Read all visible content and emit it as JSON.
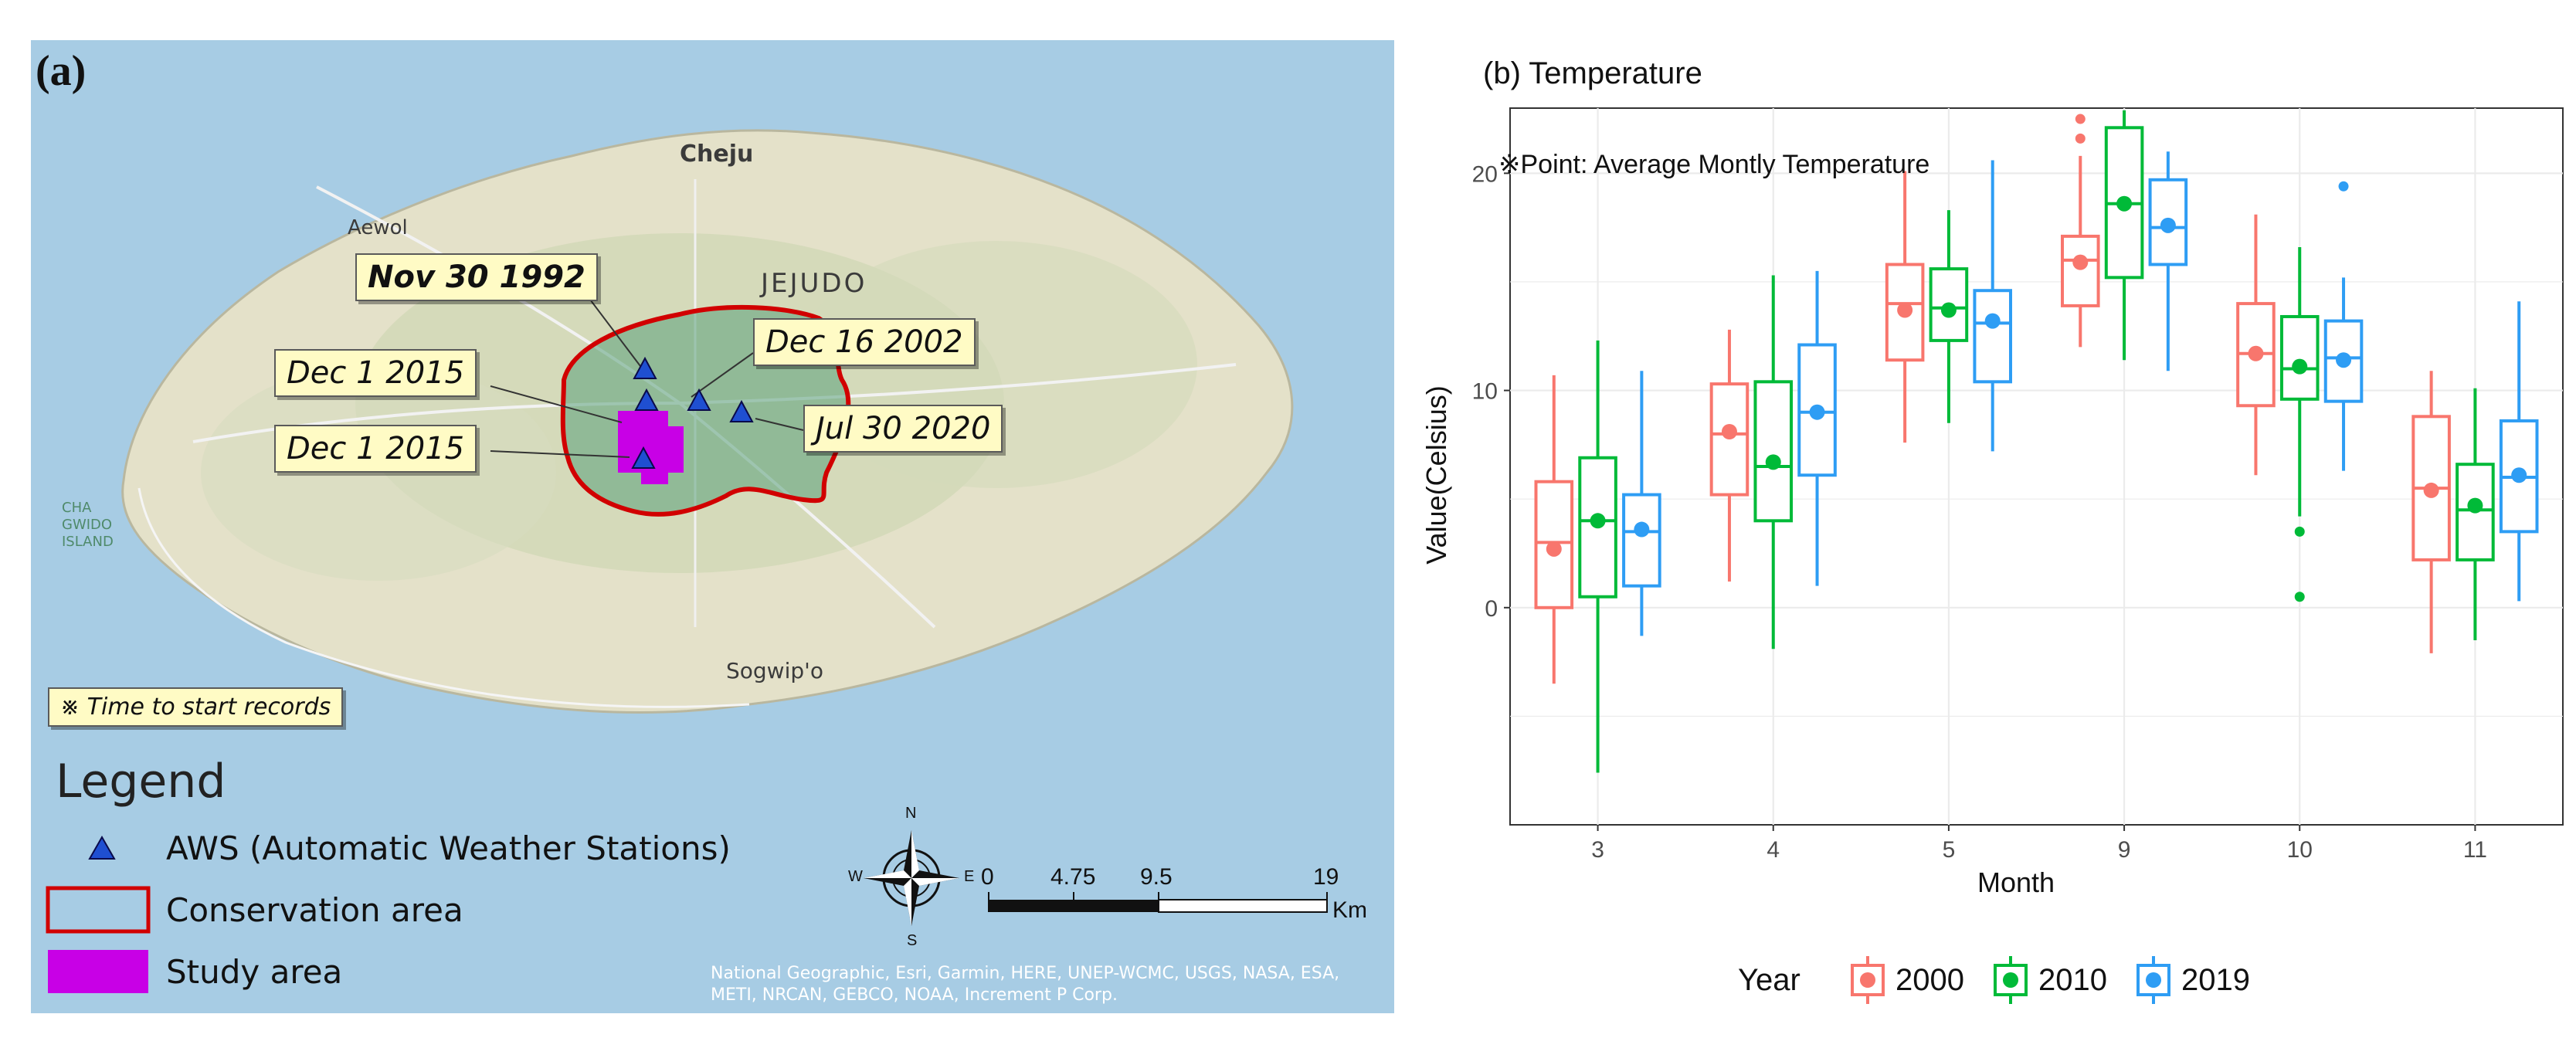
{
  "map": {
    "panel_label": "(a)",
    "callouts": [
      {
        "text": "Nov 30 1992",
        "bold": true
      },
      {
        "text": "Dec 16 2002",
        "bold": false
      },
      {
        "text": "Dec 1 2015",
        "bold": false
      },
      {
        "text": "Jul 30 2020",
        "bold": false
      },
      {
        "text": "Dec 1 2015",
        "bold": false
      }
    ],
    "place_names": {
      "cheju": "Cheju",
      "jejudo": "JEJUDO",
      "sogwipo": "Sogwip'o",
      "aewol": "Aewol",
      "island": "CHA\nGWIDO\nISLAND"
    },
    "note": "※ Time to start records",
    "legend": {
      "title": "Legend",
      "items": [
        {
          "label": "AWS (Automatic Weather Stations)",
          "symbol": "triangle",
          "color": "#1f4fd1"
        },
        {
          "label": "Conservation area",
          "symbol": "outline",
          "color": "#d10000"
        },
        {
          "label": "Study area",
          "symbol": "fill",
          "color": "#c800e6"
        }
      ]
    },
    "scale_bar": {
      "ticks": [
        "0",
        "4.75",
        "9.5",
        "19"
      ],
      "unit": "Km"
    },
    "compass": {
      "n": "N",
      "s": "S",
      "e": "E",
      "w": "W"
    },
    "attribution": "National Geographic, Esri, Garmin, HERE, UNEP-WCMC, USGS, NASA, ESA, METI, NRCAN, GEBCO, NOAA, Increment P Corp."
  },
  "chart_data": {
    "type": "boxplot",
    "title": "(b) Temperature",
    "annotation": "※Point: Average Montly Temperature",
    "xlabel": "Month",
    "ylabel": "Value(Celsius)",
    "ylim": [
      -10,
      23
    ],
    "yticks": [
      0,
      10,
      20
    ],
    "categories": [
      "3",
      "4",
      "5",
      "9",
      "10",
      "11"
    ],
    "legend_title": "Year",
    "series": [
      {
        "name": "2000",
        "color": "#f8766d",
        "boxes": [
          {
            "min": -3.5,
            "q1": 0.0,
            "median": 3.0,
            "q3": 5.8,
            "max": 10.7,
            "mean": 2.7,
            "outliers": []
          },
          {
            "min": 1.2,
            "q1": 5.2,
            "median": 8.0,
            "q3": 10.3,
            "max": 12.8,
            "mean": 8.1,
            "outliers": []
          },
          {
            "min": 7.6,
            "q1": 11.4,
            "median": 14.0,
            "q3": 15.8,
            "max": 20.1,
            "mean": 13.7,
            "outliers": []
          },
          {
            "min": 12.0,
            "q1": 13.9,
            "median": 16.0,
            "q3": 17.1,
            "max": 20.8,
            "mean": 15.9,
            "outliers": [
              21.6,
              22.5
            ]
          },
          {
            "min": 6.1,
            "q1": 9.3,
            "median": 11.7,
            "q3": 14.0,
            "max": 18.1,
            "mean": 11.7,
            "outliers": []
          },
          {
            "min": -2.1,
            "q1": 2.2,
            "median": 5.5,
            "q3": 8.8,
            "max": 10.9,
            "mean": 5.4,
            "outliers": []
          }
        ]
      },
      {
        "name": "2010",
        "color": "#00ba38",
        "boxes": [
          {
            "min": -7.6,
            "q1": 0.5,
            "median": 4.0,
            "q3": 6.9,
            "max": 12.3,
            "mean": 4.0,
            "outliers": []
          },
          {
            "min": -1.9,
            "q1": 4.0,
            "median": 6.5,
            "q3": 10.4,
            "max": 15.3,
            "mean": 6.7,
            "outliers": []
          },
          {
            "min": 8.5,
            "q1": 12.3,
            "median": 13.8,
            "q3": 15.6,
            "max": 18.3,
            "mean": 13.7,
            "outliers": []
          },
          {
            "min": 11.4,
            "q1": 15.2,
            "median": 18.6,
            "q3": 22.1,
            "max": 22.9,
            "mean": 18.6,
            "outliers": []
          },
          {
            "min": 4.2,
            "q1": 9.6,
            "median": 11.0,
            "q3": 13.4,
            "max": 16.6,
            "mean": 11.1,
            "outliers": [
              3.5,
              0.5
            ]
          },
          {
            "min": -1.5,
            "q1": 2.2,
            "median": 4.5,
            "q3": 6.6,
            "max": 10.1,
            "mean": 4.7,
            "outliers": []
          }
        ]
      },
      {
        "name": "2019",
        "color": "#2e9df4",
        "boxes": [
          {
            "min": -1.3,
            "q1": 1.0,
            "median": 3.5,
            "q3": 5.2,
            "max": 10.9,
            "mean": 3.6,
            "outliers": []
          },
          {
            "min": 1.0,
            "q1": 6.1,
            "median": 9.0,
            "q3": 12.1,
            "max": 15.5,
            "mean": 9.0,
            "outliers": []
          },
          {
            "min": 7.2,
            "q1": 10.4,
            "median": 13.1,
            "q3": 14.6,
            "max": 20.6,
            "mean": 13.2,
            "outliers": []
          },
          {
            "min": 10.9,
            "q1": 15.8,
            "median": 17.5,
            "q3": 19.7,
            "max": 21.0,
            "mean": 17.6,
            "outliers": []
          },
          {
            "min": 6.3,
            "q1": 9.5,
            "median": 11.5,
            "q3": 13.2,
            "max": 15.2,
            "mean": 11.4,
            "outliers": [
              19.4
            ]
          },
          {
            "min": 0.3,
            "q1": 3.5,
            "median": 6.0,
            "q3": 8.6,
            "max": 14.1,
            "mean": 6.1,
            "outliers": []
          }
        ]
      }
    ]
  }
}
